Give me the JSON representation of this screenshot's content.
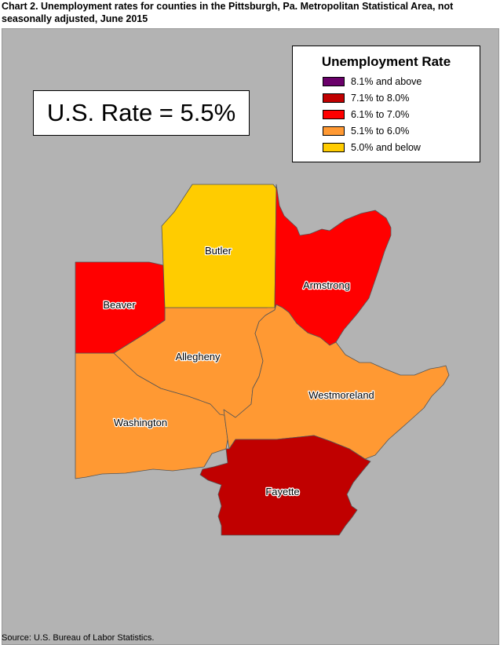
{
  "title": "Chart 2. Unemployment rates for counties in the Pittsburgh, Pa. Metropolitan Statistical Area, not seasonally adjusted, June 2015",
  "us_rate_label": "U.S. Rate = 5.5%",
  "source": "Source: U.S. Bureau of Labor Statistics.",
  "legend": {
    "title": "Unemployment Rate",
    "items": [
      {
        "label": "8.1% and above",
        "color": "#6a006a"
      },
      {
        "label": "7.1% to 8.0%",
        "color": "#c00000"
      },
      {
        "label": "6.1% to 7.0%",
        "color": "#ff0000"
      },
      {
        "label": "5.1% to 6.0%",
        "color": "#ff9933"
      },
      {
        "label": "5.0% and below",
        "color": "#ffcc00"
      }
    ]
  },
  "counties": [
    {
      "name": "Butler",
      "category": "5.0% and below",
      "color": "#ffcc00"
    },
    {
      "name": "Armstrong",
      "category": "6.1% to 7.0%",
      "color": "#ff0000"
    },
    {
      "name": "Beaver",
      "category": "6.1% to 7.0%",
      "color": "#ff0000"
    },
    {
      "name": "Allegheny",
      "category": "5.1% to 6.0%",
      "color": "#ff9933"
    },
    {
      "name": "Westmoreland",
      "category": "5.1% to 6.0%",
      "color": "#ff9933"
    },
    {
      "name": "Washington",
      "category": "5.1% to 6.0%",
      "color": "#ff9933"
    },
    {
      "name": "Fayette",
      "category": "7.1% to 8.0%",
      "color": "#c00000"
    }
  ]
}
